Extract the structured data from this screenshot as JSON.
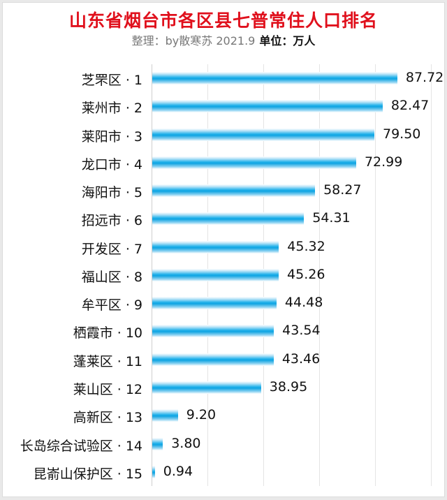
{
  "header": {
    "title": "山东省烟台市各区县七普常住人口排名",
    "subtitle_credit": "整理：by散寒苏 2021.9",
    "subtitle_unit": "单位：万人"
  },
  "colors": {
    "title": "#e0101c",
    "bar": "#10a4e2",
    "gridline": "#e4e4e4"
  },
  "rows": [
    {
      "label": "芝罘区 · 1",
      "value": "87.72"
    },
    {
      "label": "莱州市 · 2",
      "value": "82.47"
    },
    {
      "label": "莱阳市 · 3",
      "value": "79.50"
    },
    {
      "label": "龙口市 · 4",
      "value": "72.99"
    },
    {
      "label": "海阳市 · 5",
      "value": "58.27"
    },
    {
      "label": "招远市 · 6",
      "value": "54.31"
    },
    {
      "label": "开发区 · 7",
      "value": "45.32"
    },
    {
      "label": "福山区 · 8",
      "value": "45.26"
    },
    {
      "label": "牟平区 · 9",
      "value": "44.48"
    },
    {
      "label": "栖霞市 · 10",
      "value": "43.54"
    },
    {
      "label": "蓬莱区 · 11",
      "value": "43.46"
    },
    {
      "label": "莱山区 · 12",
      "value": "38.95"
    },
    {
      "label": "高新区 · 13",
      "value": "9.20"
    },
    {
      "label": "长岛综合试验区 · 14",
      "value": "3.80"
    },
    {
      "label": "昆嵛山保护区 · 15",
      "value": "0.94"
    }
  ],
  "chart_data": {
    "type": "bar",
    "orientation": "horizontal",
    "title": "山东省烟台市各区县七普常住人口排名",
    "subtitle": "整理：by散寒苏 2021.9 单位：万人",
    "xlabel": "",
    "ylabel": "",
    "categories": [
      "芝罘区 · 1",
      "莱州市 · 2",
      "莱阳市 · 3",
      "龙口市 · 4",
      "海阳市 · 5",
      "招远市 · 6",
      "开发区 · 7",
      "福山区 · 8",
      "牟平区 · 9",
      "栖霞市 · 10",
      "蓬莱区 · 11",
      "莱山区 · 12",
      "高新区 · 13",
      "长岛综合试验区 · 14",
      "昆嵛山保护区 · 15"
    ],
    "values": [
      87.72,
      82.47,
      79.5,
      72.99,
      58.27,
      54.31,
      45.32,
      45.26,
      44.48,
      43.54,
      43.46,
      38.95,
      9.2,
      3.8,
      0.94
    ],
    "xlim": [
      0,
      100
    ],
    "grid": "vertical",
    "data_labels": true,
    "legend": "none"
  }
}
